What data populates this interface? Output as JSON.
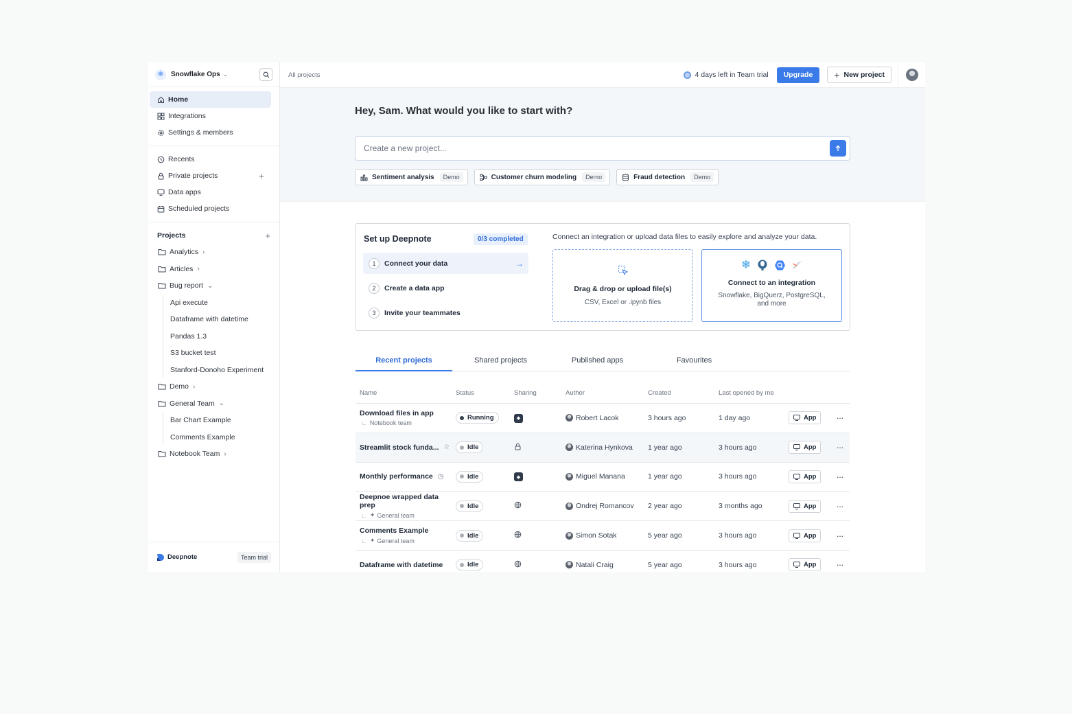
{
  "sidebar": {
    "workspace": {
      "name": "Snowflake Ops",
      "logo_icon": "snowflake-icon"
    },
    "nav": [
      {
        "label": "Home",
        "icon": "home-icon",
        "active": true
      },
      {
        "label": "Integrations",
        "icon": "integrations-icon"
      },
      {
        "label": "Settings & members",
        "icon": "gear-icon"
      }
    ],
    "nav2": [
      {
        "label": "Recents",
        "icon": "clock-icon"
      },
      {
        "label": "Private projects",
        "icon": "lock-icon"
      },
      {
        "label": "Data apps",
        "icon": "monitor-icon"
      },
      {
        "label": "Scheduled projects",
        "icon": "calendar-icon"
      }
    ],
    "projects_heading": "Projects",
    "folders": {
      "analytics": "Analytics",
      "articles": "Articles",
      "bug_report": "Bug report",
      "bug_report_items": [
        "Api execute",
        "Dataframe with datetime",
        "Pandas 1.3",
        "S3 bucket test",
        "Stanford-Donoho Experiment"
      ],
      "demo": "Demo",
      "general_team": "General Team",
      "general_team_items": [
        "Bar Chart Example",
        "Comments Example"
      ],
      "notebook_team": "Notebook Team"
    },
    "footer": {
      "brand": "Deepnote",
      "plan": "Team trial"
    }
  },
  "topbar": {
    "breadcrumb": "All projects",
    "trial_text": "4 days left in Team trial",
    "upgrade_label": "Upgrade",
    "new_project_label": "New project"
  },
  "hero": {
    "greeting": "Hey, Sam. What would you like to start with?",
    "prompt_placeholder": "Create a new project...",
    "chips": [
      {
        "label": "Sentiment analysis",
        "tag": "Demo",
        "icon": "chart-icon"
      },
      {
        "label": "Customer churn modeling",
        "tag": "Demo",
        "icon": "flow-icon"
      },
      {
        "label": "Fraud detection",
        "tag": "Demo",
        "icon": "database-icon"
      }
    ]
  },
  "setup": {
    "title": "Set up Deepnote",
    "progress": "0/3 completed",
    "steps": [
      {
        "num": "1",
        "label": "Connect your data"
      },
      {
        "num": "2",
        "label": "Create a data app"
      },
      {
        "num": "3",
        "label": "Invite your teammates"
      }
    ],
    "description": "Connect an integration or upload data files to easily explore and analyze your data.",
    "upload": {
      "title": "Drag & drop or upload file(s)",
      "subtitle": "CSV, Excel or .ipynb files"
    },
    "integration": {
      "title": "Connect to an integration",
      "subtitle_1": "Snowflake, BigQuerz, PostgreSQL,",
      "subtitle_2": "and more"
    }
  },
  "tabs": [
    "Recent projects",
    "Shared projects",
    "Published apps",
    "Favourites"
  ],
  "table": {
    "columns": [
      "Name",
      "Status",
      "Sharing",
      "Author",
      "Created",
      "Last opened by me"
    ],
    "rows": [
      {
        "name": "Download files in app",
        "sub": "Notebook team",
        "status": "Running",
        "sharing": "team",
        "author": "Robert Lacok",
        "created": "3 hours ago",
        "opened": "1 day ago",
        "app": "App"
      },
      {
        "name": "Streamlit stock funda...",
        "sub": "",
        "status": "Idle",
        "sharing": "private",
        "author": "Katerina Hynkova",
        "created": "1 year ago",
        "opened": "3 hours ago",
        "app": "App"
      },
      {
        "name": "Monthly performance",
        "sub": "",
        "status": "Idle",
        "sharing": "team",
        "author": "Miguel Manana",
        "created": "1 year ago",
        "opened": "3 hours ago",
        "app": "App"
      },
      {
        "name": "Deepnoe wrapped data prep",
        "sub": "General team",
        "status": "Idle",
        "sharing": "public",
        "author": "Ondrej Romancov",
        "created": "2 year ago",
        "opened": "3 months ago",
        "app": "App"
      },
      {
        "name": "Comments Example",
        "sub": "General team",
        "status": "Idle",
        "sharing": "public",
        "author": "Simon Sotak",
        "created": "5 year ago",
        "opened": "3 hours ago",
        "app": "App"
      },
      {
        "name": "Dataframe with datetime",
        "sub": "",
        "status": "Idle",
        "sharing": "public",
        "author": "Natali Craig",
        "created": "5 year ago",
        "opened": "3 hours ago",
        "app": "App"
      }
    ]
  },
  "colors": {
    "accent": "#3a7be9",
    "accent_light": "#e8f0fd"
  }
}
